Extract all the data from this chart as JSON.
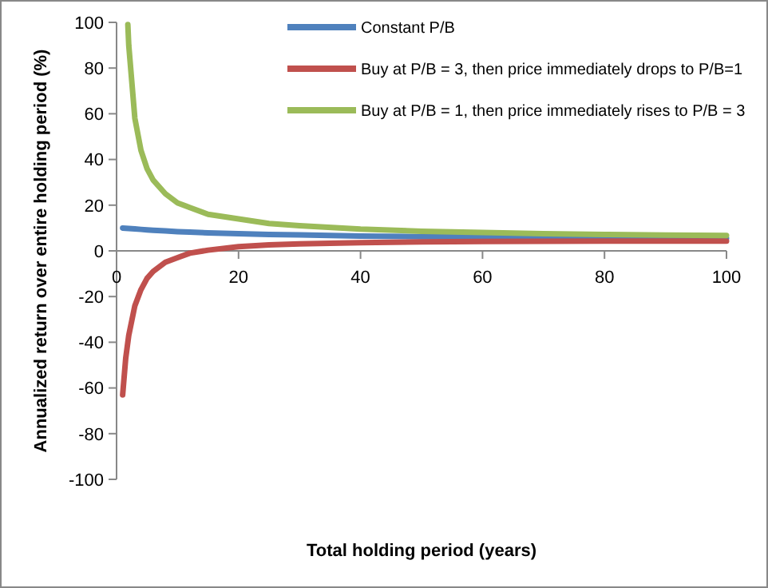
{
  "chart_data": {
    "type": "line",
    "xlabel": "Total holding period (years)",
    "ylabel": "Annualized return over entire holding period (%)",
    "xlim": [
      0,
      100
    ],
    "xticks": [
      0,
      20,
      40,
      60,
      80,
      100
    ],
    "ylim": [
      -100,
      100
    ],
    "yticks": [
      -100,
      -80,
      -60,
      -40,
      -20,
      0,
      20,
      40,
      60,
      80,
      100
    ],
    "grid": false,
    "legend": "top right",
    "marker": "none",
    "line_style": "solid",
    "series": [
      {
        "name": "Constant P/B",
        "color": "#4f81bd",
        "x": [
          1,
          2,
          3,
          4,
          5,
          6,
          8,
          10,
          12,
          15,
          20,
          25,
          30,
          40,
          50,
          60,
          70,
          80,
          90,
          100
        ],
        "values": [
          10,
          9.8,
          9.6,
          9.4,
          9.2,
          9,
          8.7,
          8.4,
          8.2,
          7.9,
          7.5,
          7.2,
          7,
          6.5,
          6.2,
          6,
          5.8,
          5.7,
          5.6,
          5.5
        ]
      },
      {
        "name": "Buy at P/B = 3, then price immediately drops to P/B=1",
        "color": "#c0504d",
        "x": [
          1,
          1.5,
          2,
          3,
          4,
          5,
          6,
          8,
          10,
          12,
          15,
          20,
          25,
          30,
          40,
          50,
          60,
          70,
          80,
          90,
          100
        ],
        "values": [
          -63,
          -47,
          -37,
          -24,
          -17,
          -12,
          -9,
          -5,
          -3,
          -1,
          0.3,
          1.8,
          2.6,
          3.1,
          3.6,
          3.9,
          4.1,
          4.2,
          4.3,
          4.3,
          4.3
        ]
      },
      {
        "name": "Buy at P/B = 1, then price immediately rises to P/B = 3",
        "color": "#9bbb59",
        "x": [
          1.85,
          2,
          3,
          4,
          5,
          6,
          8,
          10,
          12,
          15,
          20,
          25,
          30,
          40,
          50,
          60,
          70,
          80,
          90,
          100
        ],
        "values": [
          99,
          90,
          58,
          44,
          36,
          31,
          25,
          21,
          19,
          16,
          14,
          12,
          11,
          9.5,
          8.6,
          8,
          7.5,
          7.2,
          6.9,
          6.7
        ]
      }
    ]
  }
}
